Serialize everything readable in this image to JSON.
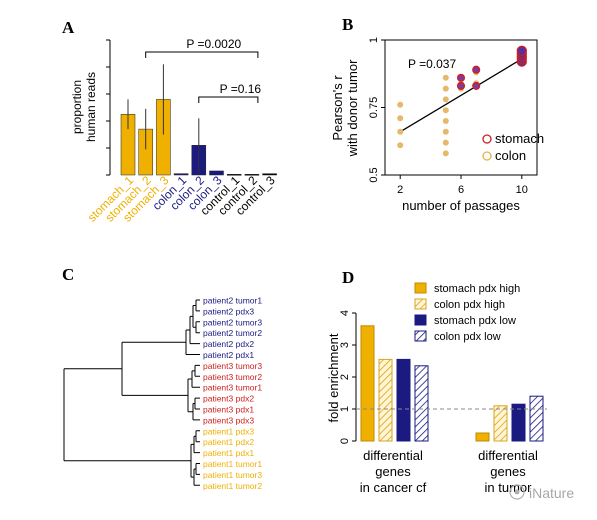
{
  "panels": {
    "A": {
      "letter": "A"
    },
    "B": {
      "letter": "B"
    },
    "C": {
      "letter": "C"
    },
    "D": {
      "letter": "D"
    }
  },
  "watermark": "iNature",
  "colors": {
    "stomach": "#f0b000",
    "colon": "#1a1a80",
    "control": "#000000",
    "stomach_red": "#cc1f1f",
    "scatter_fill": "#e6b86a",
    "purple": "#7d3aa0",
    "dashed": "#888888"
  },
  "chart_data": [
    {
      "panel": "A",
      "type": "bar",
      "ylabel": "proportion\nhuman reads",
      "categories": [
        "stomach_1",
        "stomach_2",
        "stomach_3",
        "colon_1",
        "colon_2",
        "colon_3",
        "control_1",
        "control_2",
        "control_3"
      ],
      "category_groups": [
        "stomach",
        "stomach",
        "stomach",
        "colon",
        "colon",
        "colon",
        "control",
        "control",
        "control"
      ],
      "values": [
        0.45,
        0.34,
        0.56,
        0.01,
        0.22,
        0.03,
        0.005,
        0.005,
        0.01
      ],
      "errors": [
        0.11,
        0.15,
        0.26,
        0.005,
        0.2,
        0.01,
        0.003,
        0.003,
        0.005
      ],
      "ylim": [
        0,
        1.0
      ],
      "yticks": [
        0.0,
        0.2,
        0.4,
        0.6,
        0.8,
        1.0
      ],
      "annotations": [
        {
          "text": "P =0.0020",
          "from": 1,
          "to": 7
        },
        {
          "text": "P =0.16",
          "from": 4,
          "to": 7
        }
      ]
    },
    {
      "panel": "B",
      "type": "scatter",
      "xlabel": "number of passages",
      "ylabel": "Pearson's r\nwith donor tumor",
      "xlim": [
        1,
        11
      ],
      "ylim": [
        0.5,
        1.0
      ],
      "xticks": [
        2,
        6,
        10
      ],
      "yticks": [
        0.5,
        0.75,
        1
      ],
      "ytick_labels": [
        "0.5",
        "0.75",
        "1"
      ],
      "annotation": "P =0.037",
      "legend": [
        {
          "label": "stomach",
          "ring": "#cc1f1f"
        },
        {
          "label": "colon",
          "ring": "#e8b050"
        }
      ],
      "colon_points": [
        [
          2,
          0.61
        ],
        [
          2,
          0.66
        ],
        [
          2,
          0.71
        ],
        [
          2,
          0.76
        ],
        [
          5,
          0.58
        ],
        [
          5,
          0.62
        ],
        [
          5,
          0.66
        ],
        [
          5,
          0.7
        ],
        [
          5,
          0.74
        ],
        [
          5,
          0.78
        ],
        [
          5,
          0.82
        ],
        [
          5,
          0.86
        ],
        [
          6,
          0.82
        ],
        [
          6,
          0.84
        ],
        [
          6,
          0.86
        ],
        [
          7,
          0.84
        ],
        [
          7,
          0.88
        ],
        [
          10,
          0.93
        ],
        [
          10,
          0.95
        ]
      ],
      "stomach_points": [
        [
          6,
          0.83
        ],
        [
          6,
          0.86
        ],
        [
          7,
          0.83
        ],
        [
          7,
          0.89
        ],
        [
          10,
          0.92
        ],
        [
          10,
          0.93
        ],
        [
          10,
          0.94
        ],
        [
          10,
          0.95
        ],
        [
          10,
          0.96
        ]
      ],
      "fit_line": [
        [
          2,
          0.66
        ],
        [
          10,
          0.93
        ]
      ]
    },
    {
      "panel": "C",
      "type": "dendrogram",
      "leaves": [
        {
          "label": "patient2 tumor1",
          "group": "colon"
        },
        {
          "label": "patient2 pdx3",
          "group": "colon"
        },
        {
          "label": "patient2 tumor3",
          "group": "colon"
        },
        {
          "label": "patient2 tumor2",
          "group": "colon"
        },
        {
          "label": "patient2 pdx2",
          "group": "colon"
        },
        {
          "label": "patient2 pdx1",
          "group": "colon"
        },
        {
          "label": "patient3 tumor3",
          "group": "red"
        },
        {
          "label": "patient3 tumor2",
          "group": "red"
        },
        {
          "label": "patient3 tumor1",
          "group": "red"
        },
        {
          "label": "patient3 pdx2",
          "group": "red"
        },
        {
          "label": "patient3 pdx1",
          "group": "red"
        },
        {
          "label": "patient3 pdx3",
          "group": "red"
        },
        {
          "label": "patient1 pdx3",
          "group": "stomach"
        },
        {
          "label": "patient1 pdx2",
          "group": "stomach"
        },
        {
          "label": "patient1 pdx1",
          "group": "stomach"
        },
        {
          "label": "patient1 tumor1",
          "group": "stomach"
        },
        {
          "label": "patient1 tumor3",
          "group": "stomach"
        },
        {
          "label": "patient1 tumor2",
          "group": "stomach"
        }
      ]
    },
    {
      "panel": "D",
      "type": "bar",
      "ylabel": "fold enrichment",
      "categories": [
        "differential\ngenes\nin cancer cf",
        "differential\ngenes\nin tumor"
      ],
      "series": [
        {
          "name": "stomach pdx high",
          "values": [
            3.6,
            0.25
          ],
          "style": "solid-orange"
        },
        {
          "name": "colon pdx high",
          "values": [
            2.55,
            1.1
          ],
          "style": "hatch-orange"
        },
        {
          "name": "stomach pdx low",
          "values": [
            2.55,
            1.15
          ],
          "style": "solid-navy"
        },
        {
          "name": "colon pdx low",
          "values": [
            2.35,
            1.4
          ],
          "style": "hatch-navy"
        }
      ],
      "ylim": [
        0,
        4
      ],
      "yticks": [
        0,
        1,
        2,
        3,
        4
      ],
      "reference_line": 1
    }
  ]
}
